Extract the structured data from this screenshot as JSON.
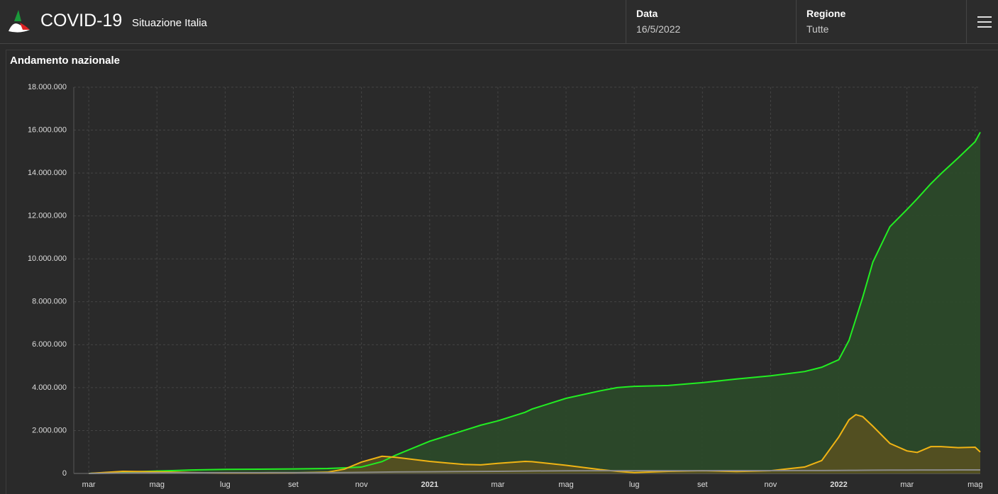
{
  "header": {
    "title": "COVID-19",
    "subtitle": "Situazione Italia",
    "fields": [
      {
        "label": "Data",
        "value": "16/5/2022"
      },
      {
        "label": "Regione",
        "value": "Tutte"
      }
    ]
  },
  "chart_data": {
    "type": "area",
    "title": "Andamento nazionale",
    "x": [
      0,
      1,
      2,
      3,
      4,
      5,
      6,
      7,
      7.5,
      8,
      8.6,
      9,
      10,
      11,
      11.5,
      12,
      12.8,
      13,
      14,
      15,
      15.5,
      16,
      17,
      18,
      19,
      20,
      21,
      21.5,
      22,
      22.3,
      22.5,
      22.7,
      23,
      23.5,
      24,
      24.3,
      24.7,
      25,
      25.5,
      26,
      26.15
    ],
    "xlim": [
      -0.44,
      26.15
    ],
    "xticks": [
      {
        "value": 0,
        "label": "mar"
      },
      {
        "value": 2,
        "label": "mag"
      },
      {
        "value": 4,
        "label": "lug"
      },
      {
        "value": 6,
        "label": "set"
      },
      {
        "value": 8,
        "label": "nov"
      },
      {
        "value": 10,
        "label": "2021"
      },
      {
        "value": 12,
        "label": "mar"
      },
      {
        "value": 14,
        "label": "mag"
      },
      {
        "value": 16,
        "label": "lug"
      },
      {
        "value": 18,
        "label": "set"
      },
      {
        "value": 20,
        "label": "nov"
      },
      {
        "value": 22,
        "label": "2022"
      },
      {
        "value": 24,
        "label": "mar"
      },
      {
        "value": 26,
        "label": "mag"
      }
    ],
    "ylim": [
      0,
      18000000
    ],
    "yticks": [
      0,
      {
        "value": 2000000,
        "label": "2.000.000"
      },
      {
        "value": 4000000,
        "label": "4.000.000"
      },
      {
        "value": 6000000,
        "label": "6.000.000"
      },
      {
        "value": 8000000,
        "label": "8.000.000"
      },
      {
        "value": 10000000,
        "label": "10.000.000"
      },
      {
        "value": 12000000,
        "label": "12.000.000"
      },
      {
        "value": 14000000,
        "label": "14.000.000"
      },
      {
        "value": 16000000,
        "label": "16.000.000"
      },
      {
        "value": 18000000,
        "label": "18.000.000"
      }
    ],
    "grid": true,
    "series": [
      {
        "color": "#22ee22",
        "fill": "#2b4a29",
        "values": [
          0,
          60000,
          110000,
          160000,
          190000,
          200000,
          210000,
          230000,
          260000,
          300000,
          550000,
          850000,
          1500000,
          2000000,
          2250000,
          2450000,
          2850000,
          3000000,
          3500000,
          3850000,
          4000000,
          4060000,
          4100000,
          4230000,
          4400000,
          4550000,
          4750000,
          4950000,
          5300000,
          6200000,
          7200000,
          8200000,
          9850000,
          11500000,
          12300000,
          12800000,
          13500000,
          13970000,
          14700000,
          15460000,
          15900000
        ]
      },
      {
        "color": "#f0b414",
        "fill": "#565020",
        "values": [
          0,
          100000,
          80000,
          40000,
          20000,
          20000,
          30000,
          60000,
          200000,
          530000,
          800000,
          750000,
          560000,
          420000,
          400000,
          470000,
          560000,
          550000,
          380000,
          180000,
          100000,
          40000,
          100000,
          130000,
          90000,
          130000,
          300000,
          600000,
          1700000,
          2500000,
          2740000,
          2650000,
          2200000,
          1400000,
          1050000,
          980000,
          1250000,
          1250000,
          1200000,
          1220000,
          1000000
        ]
      },
      {
        "color": "#8a8a8a",
        "values": [
          0,
          20000,
          30000,
          34000,
          35000,
          35000,
          36000,
          37000,
          40000,
          50000,
          60000,
          70000,
          80000,
          90000,
          95000,
          100000,
          110000,
          115000,
          125000,
          127000,
          127000,
          128000,
          129000,
          130000,
          131000,
          133000,
          136000,
          138000,
          140000,
          143000,
          146000,
          149000,
          152000,
          155000,
          158000,
          159000,
          161000,
          162000,
          164000,
          165000,
          166000
        ]
      }
    ]
  }
}
